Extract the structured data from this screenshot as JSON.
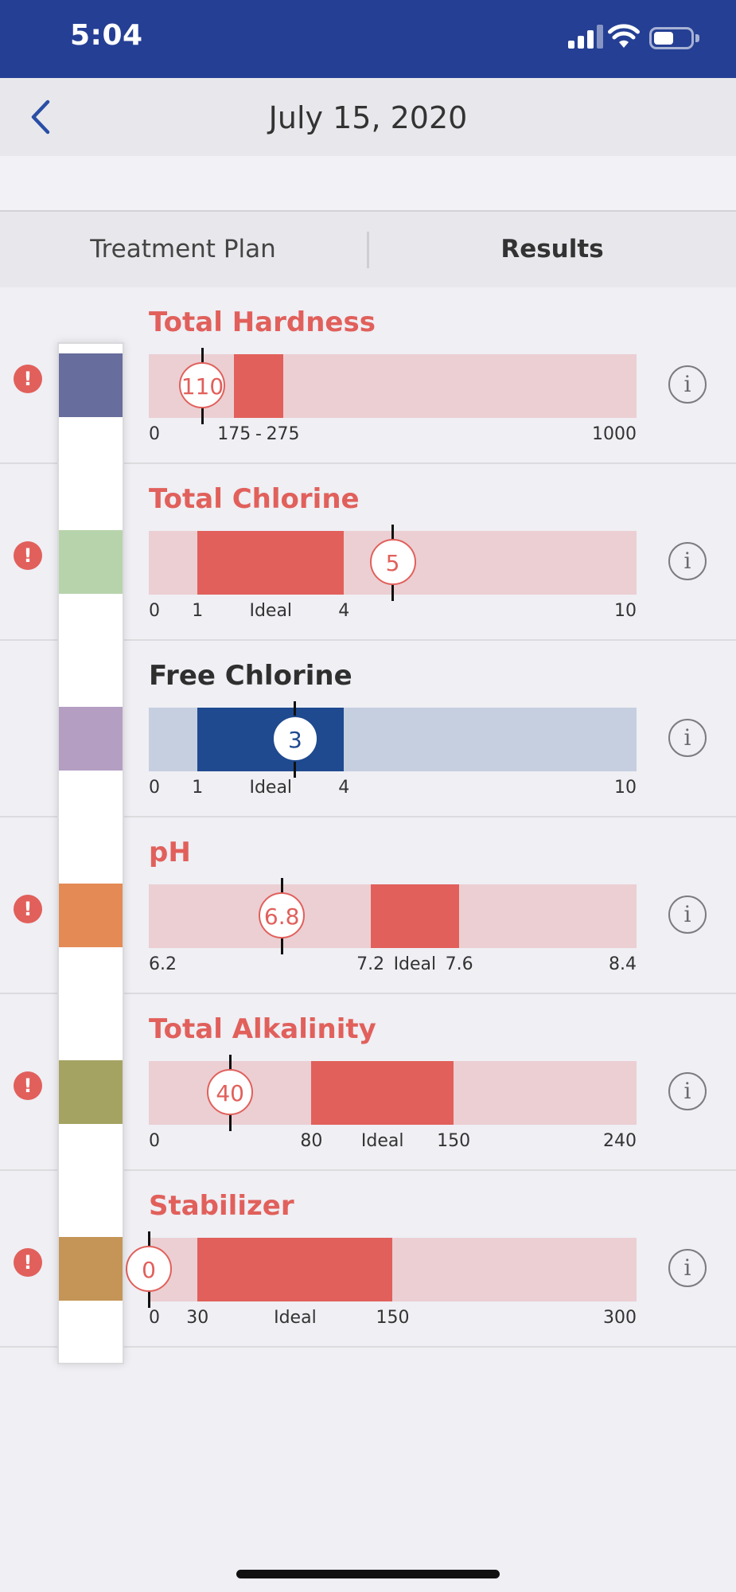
{
  "status": {
    "time": "5:04"
  },
  "header": {
    "title": "July 15, 2020"
  },
  "tabs": {
    "treatment_plan": "Treatment Plan",
    "results": "Results",
    "active": "Results"
  },
  "alert_symbol": "!",
  "info_symbol": "i",
  "strip_pad_colors": [
    "#676d9c",
    "#b7d3ac",
    "#b49ec2",
    "#e38a55",
    "#a5a362",
    "#c49556"
  ],
  "results": [
    {
      "name": "Total Hardness",
      "value": "110",
      "status": "out-of-range",
      "scale_labels": [
        "0",
        "175",
        "-",
        "275",
        "1000"
      ],
      "range_min": 0,
      "range_max": 1000,
      "ideal_min": 175,
      "ideal_max": 275
    },
    {
      "name": "Total Chlorine",
      "value": "5",
      "status": "out-of-range",
      "scale_labels": [
        "0",
        "1",
        "Ideal",
        "4",
        "10"
      ],
      "range_min": 0,
      "range_max": 10,
      "ideal_min": 1,
      "ideal_max": 4
    },
    {
      "name": "Free Chlorine",
      "value": "3",
      "status": "ok",
      "scale_labels": [
        "0",
        "1",
        "Ideal",
        "4",
        "10"
      ],
      "range_min": 0,
      "range_max": 10,
      "ideal_min": 1,
      "ideal_max": 4
    },
    {
      "name": "pH",
      "value": "6.8",
      "status": "out-of-range",
      "scale_labels": [
        "6.2",
        "7.2",
        "Ideal",
        "7.6",
        "8.4"
      ],
      "range_min": 6.2,
      "range_max": 8.4,
      "ideal_min": 7.2,
      "ideal_max": 7.6
    },
    {
      "name": "Total Alkalinity",
      "value": "40",
      "status": "out-of-range",
      "scale_labels": [
        "0",
        "80",
        "Ideal",
        "150",
        "240"
      ],
      "range_min": 0,
      "range_max": 240,
      "ideal_min": 80,
      "ideal_max": 150
    },
    {
      "name": "Stabilizer",
      "value": "0",
      "status": "out-of-range",
      "scale_labels": [
        "0",
        "30",
        "Ideal",
        "150",
        "300"
      ],
      "range_min": 0,
      "range_max": 300,
      "ideal_min": 30,
      "ideal_max": 150
    }
  ]
}
